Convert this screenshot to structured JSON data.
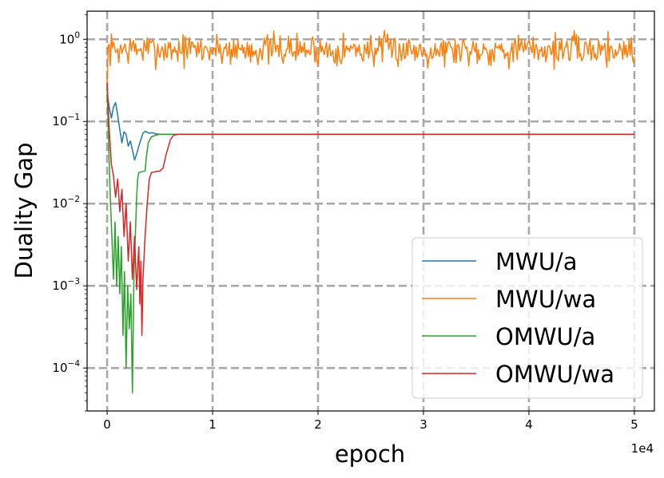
{
  "chart_data": {
    "type": "line",
    "title": "",
    "xlabel": "epoch",
    "ylabel": "Duality Gap",
    "x_offset_label": "1e4",
    "xlim": [
      -1900,
      51900
    ],
    "ylim": [
      3e-05,
      2.2
    ],
    "yscale": "log",
    "grid": true,
    "legend_placement": "lower-right",
    "xticks": [
      {
        "value": 0,
        "label": "0"
      },
      {
        "value": 10000,
        "label": "1"
      },
      {
        "value": 20000,
        "label": "2"
      },
      {
        "value": 30000,
        "label": "3"
      },
      {
        "value": 40000,
        "label": "4"
      },
      {
        "value": 50000,
        "label": "5"
      }
    ],
    "yticks": [
      {
        "value": 0.0001,
        "base": "10",
        "exp": "−4"
      },
      {
        "value": 0.001,
        "base": "10",
        "exp": "−3"
      },
      {
        "value": 0.01,
        "base": "10",
        "exp": "−2"
      },
      {
        "value": 0.1,
        "base": "10",
        "exp": "−1"
      },
      {
        "value": 1,
        "base": "10",
        "exp": "0"
      }
    ],
    "series": [
      {
        "name": "MWU/a",
        "color": "#1f77b4",
        "points": [
          [
            0,
            0.22
          ],
          [
            200,
            0.15
          ],
          [
            400,
            0.11
          ],
          [
            600,
            0.15
          ],
          [
            800,
            0.17
          ],
          [
            1000,
            0.12
          ],
          [
            1200,
            0.08
          ],
          [
            1400,
            0.055
          ],
          [
            1600,
            0.075
          ],
          [
            1800,
            0.07
          ],
          [
            2000,
            0.05
          ],
          [
            2200,
            0.058
          ],
          [
            2400,
            0.045
          ],
          [
            2600,
            0.034
          ],
          [
            2800,
            0.04
          ],
          [
            3000,
            0.05
          ],
          [
            3200,
            0.06
          ],
          [
            3400,
            0.072
          ],
          [
            3600,
            0.076
          ],
          [
            3800,
            0.074
          ],
          [
            4000,
            0.072
          ],
          [
            4300,
            0.073
          ],
          [
            4600,
            0.071
          ],
          [
            5000,
            0.07
          ],
          [
            6000,
            0.07
          ],
          [
            50000,
            0.07
          ]
        ]
      },
      {
        "name": "MWU/wa",
        "color": "#ff7f0e",
        "noise": true,
        "seed": 7,
        "start": [
          0,
          0.3
        ],
        "x_start": 100,
        "x_end": 50000,
        "x_step": 100,
        "median": 0.75,
        "log10_spread": 0.16,
        "min": 0.3,
        "max": 1.3
      },
      {
        "name": "OMWU/a",
        "color": "#2ca02c",
        "points": [
          [
            0,
            0.25
          ],
          [
            150,
            0.05
          ],
          [
            300,
            0.012
          ],
          [
            450,
            0.004
          ],
          [
            600,
            0.0012
          ],
          [
            750,
            0.006
          ],
          [
            900,
            0.001
          ],
          [
            1050,
            0.004
          ],
          [
            1200,
            0.0008
          ],
          [
            1350,
            0.003
          ],
          [
            1500,
            0.00025
          ],
          [
            1650,
            0.0015
          ],
          [
            1800,
            0.0001
          ],
          [
            1950,
            0.001
          ],
          [
            2100,
            0.0003
          ],
          [
            2250,
            0.0008
          ],
          [
            2400,
            5e-05
          ],
          [
            2550,
            0.0015
          ],
          [
            2700,
            0.005
          ],
          [
            2800,
            0.012
          ],
          [
            2900,
            0.02
          ],
          [
            3000,
            0.024
          ],
          [
            3600,
            0.025
          ],
          [
            3700,
            0.035
          ],
          [
            3900,
            0.055
          ],
          [
            4200,
            0.065
          ],
          [
            4600,
            0.068
          ],
          [
            5000,
            0.07
          ],
          [
            50000,
            0.07
          ]
        ]
      },
      {
        "name": "OMWU/wa",
        "color": "#d62728",
        "points": [
          [
            0,
            0.3
          ],
          [
            200,
            0.08
          ],
          [
            400,
            0.03
          ],
          [
            600,
            0.022
          ],
          [
            800,
            0.012
          ],
          [
            1000,
            0.02
          ],
          [
            1200,
            0.008
          ],
          [
            1400,
            0.015
          ],
          [
            1600,
            0.004
          ],
          [
            1800,
            0.01
          ],
          [
            2000,
            0.002
          ],
          [
            2200,
            0.006
          ],
          [
            2400,
            0.0012
          ],
          [
            2600,
            0.004
          ],
          [
            2800,
            0.0009
          ],
          [
            3000,
            0.003
          ],
          [
            3100,
            0.0006
          ],
          [
            3200,
            0.002
          ],
          [
            3300,
            0.00025
          ],
          [
            3400,
            0.0012
          ],
          [
            3600,
            0.004
          ],
          [
            3800,
            0.01
          ],
          [
            4000,
            0.02
          ],
          [
            4200,
            0.024
          ],
          [
            5000,
            0.025
          ],
          [
            5300,
            0.027
          ],
          [
            5600,
            0.04
          ],
          [
            6000,
            0.06
          ],
          [
            6300,
            0.068
          ],
          [
            6800,
            0.07
          ],
          [
            50000,
            0.07
          ]
        ]
      }
    ]
  }
}
